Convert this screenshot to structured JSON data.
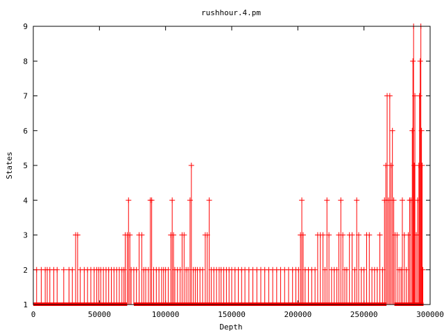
{
  "chart_data": {
    "type": "line",
    "title": "rushhour.4.pm",
    "xlabel": "Depth",
    "ylabel": "States",
    "xlim": [
      0,
      300000
    ],
    "ylim": [
      1,
      9
    ],
    "xticks": [
      0,
      50000,
      100000,
      150000,
      200000,
      250000,
      300000
    ],
    "xtick_labels": [
      "0",
      "50000",
      "100000",
      "150000",
      "200000",
      "250000",
      "300000"
    ],
    "yticks": [
      1,
      2,
      3,
      4,
      5,
      6,
      7,
      8,
      9
    ],
    "ytick_labels": [
      "1",
      "2",
      "3",
      "4",
      "5",
      "6",
      "7",
      "8",
      "9"
    ],
    "grid": false,
    "legend": "none",
    "line_color": "#ff0000",
    "marker": "plus",
    "baseline_value": 1,
    "baseline_gaps": [
      [
        71000,
        76000
      ],
      [
        267000,
        273000
      ]
    ],
    "max_depth": 295000,
    "spikes": [
      [
        2500,
        2
      ],
      [
        6000,
        2
      ],
      [
        9000,
        2
      ],
      [
        10500,
        2
      ],
      [
        12500,
        2
      ],
      [
        15500,
        2
      ],
      [
        18000,
        2
      ],
      [
        23000,
        2
      ],
      [
        27000,
        2
      ],
      [
        29500,
        2
      ],
      [
        32000,
        3
      ],
      [
        33500,
        3
      ],
      [
        35500,
        2
      ],
      [
        38500,
        2
      ],
      [
        41000,
        2
      ],
      [
        43500,
        2
      ],
      [
        46000,
        2
      ],
      [
        48000,
        2
      ],
      [
        49500,
        2
      ],
      [
        51000,
        2
      ],
      [
        53000,
        2
      ],
      [
        55000,
        2
      ],
      [
        57000,
        2
      ],
      [
        59000,
        2
      ],
      [
        61000,
        2
      ],
      [
        63000,
        2
      ],
      [
        65000,
        2
      ],
      [
        67000,
        2
      ],
      [
        68500,
        2
      ],
      [
        69500,
        3
      ],
      [
        71000,
        3
      ],
      [
        72000,
        4
      ],
      [
        73000,
        3
      ],
      [
        74000,
        2
      ],
      [
        76000,
        2
      ],
      [
        78000,
        2
      ],
      [
        80000,
        3
      ],
      [
        82000,
        3
      ],
      [
        83500,
        2
      ],
      [
        85000,
        2
      ],
      [
        87000,
        2
      ],
      [
        88500,
        4
      ],
      [
        89500,
        4
      ],
      [
        91000,
        2
      ],
      [
        93000,
        2
      ],
      [
        95000,
        2
      ],
      [
        97000,
        2
      ],
      [
        98500,
        2
      ],
      [
        100000,
        2
      ],
      [
        102000,
        2
      ],
      [
        104000,
        3
      ],
      [
        105000,
        4
      ],
      [
        106000,
        3
      ],
      [
        107000,
        2
      ],
      [
        109000,
        2
      ],
      [
        111000,
        2
      ],
      [
        112500,
        3
      ],
      [
        114000,
        3
      ],
      [
        115500,
        2
      ],
      [
        117000,
        2
      ],
      [
        118500,
        4
      ],
      [
        119500,
        5
      ],
      [
        121000,
        2
      ],
      [
        122500,
        2
      ],
      [
        124000,
        2
      ],
      [
        126000,
        2
      ],
      [
        128000,
        2
      ],
      [
        130000,
        3
      ],
      [
        131500,
        3
      ],
      [
        133000,
        4
      ],
      [
        134500,
        2
      ],
      [
        136500,
        2
      ],
      [
        138500,
        2
      ],
      [
        140500,
        2
      ],
      [
        142000,
        2
      ],
      [
        144000,
        2
      ],
      [
        146000,
        2
      ],
      [
        148000,
        2
      ],
      [
        150000,
        2
      ],
      [
        152500,
        2
      ],
      [
        155000,
        2
      ],
      [
        157500,
        2
      ],
      [
        160000,
        2
      ],
      [
        163000,
        2
      ],
      [
        166000,
        2
      ],
      [
        169000,
        2
      ],
      [
        172000,
        2
      ],
      [
        175000,
        2
      ],
      [
        178000,
        2
      ],
      [
        181000,
        2
      ],
      [
        184000,
        2
      ],
      [
        187000,
        2
      ],
      [
        190000,
        2
      ],
      [
        193000,
        2
      ],
      [
        196000,
        2
      ],
      [
        198500,
        2
      ],
      [
        200500,
        2
      ],
      [
        202000,
        3
      ],
      [
        203000,
        4
      ],
      [
        204000,
        3
      ],
      [
        205500,
        2
      ],
      [
        208000,
        2
      ],
      [
        210500,
        2
      ],
      [
        213000,
        2
      ],
      [
        215000,
        3
      ],
      [
        217000,
        3
      ],
      [
        219000,
        3
      ],
      [
        220500,
        2
      ],
      [
        222000,
        4
      ],
      [
        223500,
        3
      ],
      [
        225500,
        2
      ],
      [
        227500,
        2
      ],
      [
        229500,
        2
      ],
      [
        231000,
        3
      ],
      [
        232500,
        4
      ],
      [
        234000,
        3
      ],
      [
        235500,
        2
      ],
      [
        237000,
        2
      ],
      [
        239000,
        3
      ],
      [
        241000,
        3
      ],
      [
        243000,
        2
      ],
      [
        244500,
        4
      ],
      [
        246000,
        3
      ],
      [
        248000,
        2
      ],
      [
        250000,
        2
      ],
      [
        252000,
        3
      ],
      [
        254000,
        3
      ],
      [
        256000,
        2
      ],
      [
        258000,
        2
      ],
      [
        260000,
        2
      ],
      [
        262000,
        3
      ],
      [
        264000,
        2
      ],
      [
        265500,
        4
      ],
      [
        266500,
        5
      ],
      [
        267500,
        7
      ],
      [
        268500,
        4
      ],
      [
        269500,
        7
      ],
      [
        270500,
        5
      ],
      [
        271500,
        6
      ],
      [
        272500,
        4
      ],
      [
        273500,
        3
      ],
      [
        275000,
        3
      ],
      [
        276500,
        2
      ],
      [
        278000,
        2
      ],
      [
        279000,
        4
      ],
      [
        280500,
        3
      ],
      [
        282000,
        2
      ],
      [
        283500,
        3
      ],
      [
        284500,
        4
      ],
      [
        285500,
        4
      ],
      [
        286500,
        6
      ],
      [
        287000,
        8
      ],
      [
        287500,
        9
      ],
      [
        288000,
        5
      ],
      [
        288500,
        7
      ],
      [
        289500,
        3
      ],
      [
        290500,
        4
      ],
      [
        291500,
        5
      ],
      [
        292000,
        7
      ],
      [
        292500,
        8
      ],
      [
        293000,
        9
      ],
      [
        293500,
        6
      ],
      [
        294000,
        5
      ],
      [
        294500,
        2
      ]
    ]
  }
}
